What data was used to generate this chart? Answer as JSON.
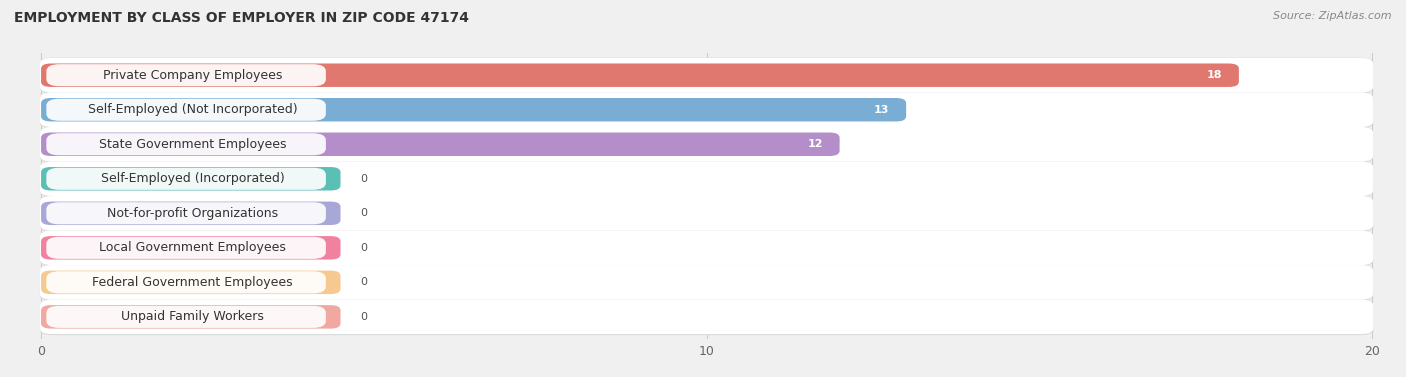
{
  "title": "EMPLOYMENT BY CLASS OF EMPLOYER IN ZIP CODE 47174",
  "source": "Source: ZipAtlas.com",
  "categories": [
    "Private Company Employees",
    "Self-Employed (Not Incorporated)",
    "State Government Employees",
    "Self-Employed (Incorporated)",
    "Not-for-profit Organizations",
    "Local Government Employees",
    "Federal Government Employees",
    "Unpaid Family Workers"
  ],
  "values": [
    18,
    13,
    12,
    0,
    0,
    0,
    0,
    0
  ],
  "bar_colors": [
    "#e07870",
    "#7aadd4",
    "#b48ec8",
    "#5bbfb5",
    "#a8a8d8",
    "#f082a0",
    "#f5c990",
    "#f0a8a0"
  ],
  "xlim_max": 20,
  "xticks": [
    0,
    10,
    20
  ],
  "background_color": "#f0f0f0",
  "row_bg_color": "#ffffff",
  "title_fontsize": 10,
  "label_fontsize": 9,
  "value_fontsize": 8,
  "source_fontsize": 8
}
